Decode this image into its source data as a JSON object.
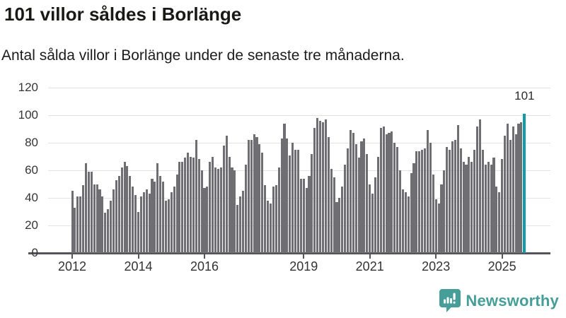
{
  "chart_data": {
    "type": "bar",
    "title": "101 villor såldes i Borlänge",
    "subtitle": "Antal sålda villor i Borlänge under de senaste tre månaderna.",
    "x_start": "2012-01",
    "frequency": "monthly-rolling-3-month-sum",
    "ylim": [
      0,
      120
    ],
    "y_ticks": [
      0,
      20,
      40,
      60,
      80,
      100,
      120
    ],
    "grid": "horizontal",
    "legend": "none",
    "x_ticks": [
      {
        "label": "2012",
        "month_index": 0
      },
      {
        "label": "2014",
        "month_index": 24
      },
      {
        "label": "2016",
        "month_index": 48
      },
      {
        "label": "2019",
        "month_index": 84
      },
      {
        "label": "2021",
        "month_index": 108
      },
      {
        "label": "2023",
        "month_index": 132
      },
      {
        "label": "2025",
        "month_index": 156
      }
    ],
    "values": [
      45,
      33,
      41,
      41,
      49,
      65,
      59,
      59,
      50,
      50,
      46,
      41,
      29,
      32,
      38,
      46,
      53,
      56,
      62,
      66,
      63,
      56,
      48,
      42,
      30,
      41,
      44,
      46,
      43,
      54,
      52,
      65,
      56,
      52,
      38,
      39,
      44,
      48,
      57,
      66,
      66,
      69,
      73,
      70,
      69,
      82,
      68,
      60,
      47,
      48,
      66,
      70,
      62,
      61,
      62,
      78,
      85,
      70,
      62,
      60,
      35,
      41,
      45,
      64,
      82,
      82,
      86,
      84,
      79,
      73,
      49,
      38,
      36,
      48,
      49,
      62,
      83,
      94,
      83,
      71,
      80,
      75,
      75,
      54,
      54,
      47,
      56,
      72,
      91,
      98,
      96,
      95,
      97,
      84,
      61,
      55,
      37,
      40,
      48,
      64,
      76,
      89,
      87,
      79,
      69,
      81,
      83,
      72,
      50,
      43,
      55,
      70,
      91,
      92,
      86,
      87,
      88,
      80,
      77,
      60,
      46,
      44,
      41,
      58,
      65,
      74,
      74,
      75,
      76,
      89,
      80,
      57,
      39,
      36,
      50,
      60,
      77,
      75,
      81,
      82,
      93,
      76,
      66,
      64,
      70,
      66,
      75,
      92,
      97,
      75,
      64,
      66,
      64,
      69,
      48,
      44,
      68,
      85,
      94,
      82,
      92,
      86,
      94,
      95,
      101
    ],
    "highlight_last_value": 101,
    "annotation": "101",
    "colors": {
      "bar": "#6e6e73",
      "highlight": "#119aa7",
      "gridline": "#e3e3e3",
      "axis": "#54545a"
    }
  },
  "footer": {
    "brand": "Newsworthy",
    "logo_icon": "newsworthy-speech-bubble-bar-chart-icon"
  }
}
